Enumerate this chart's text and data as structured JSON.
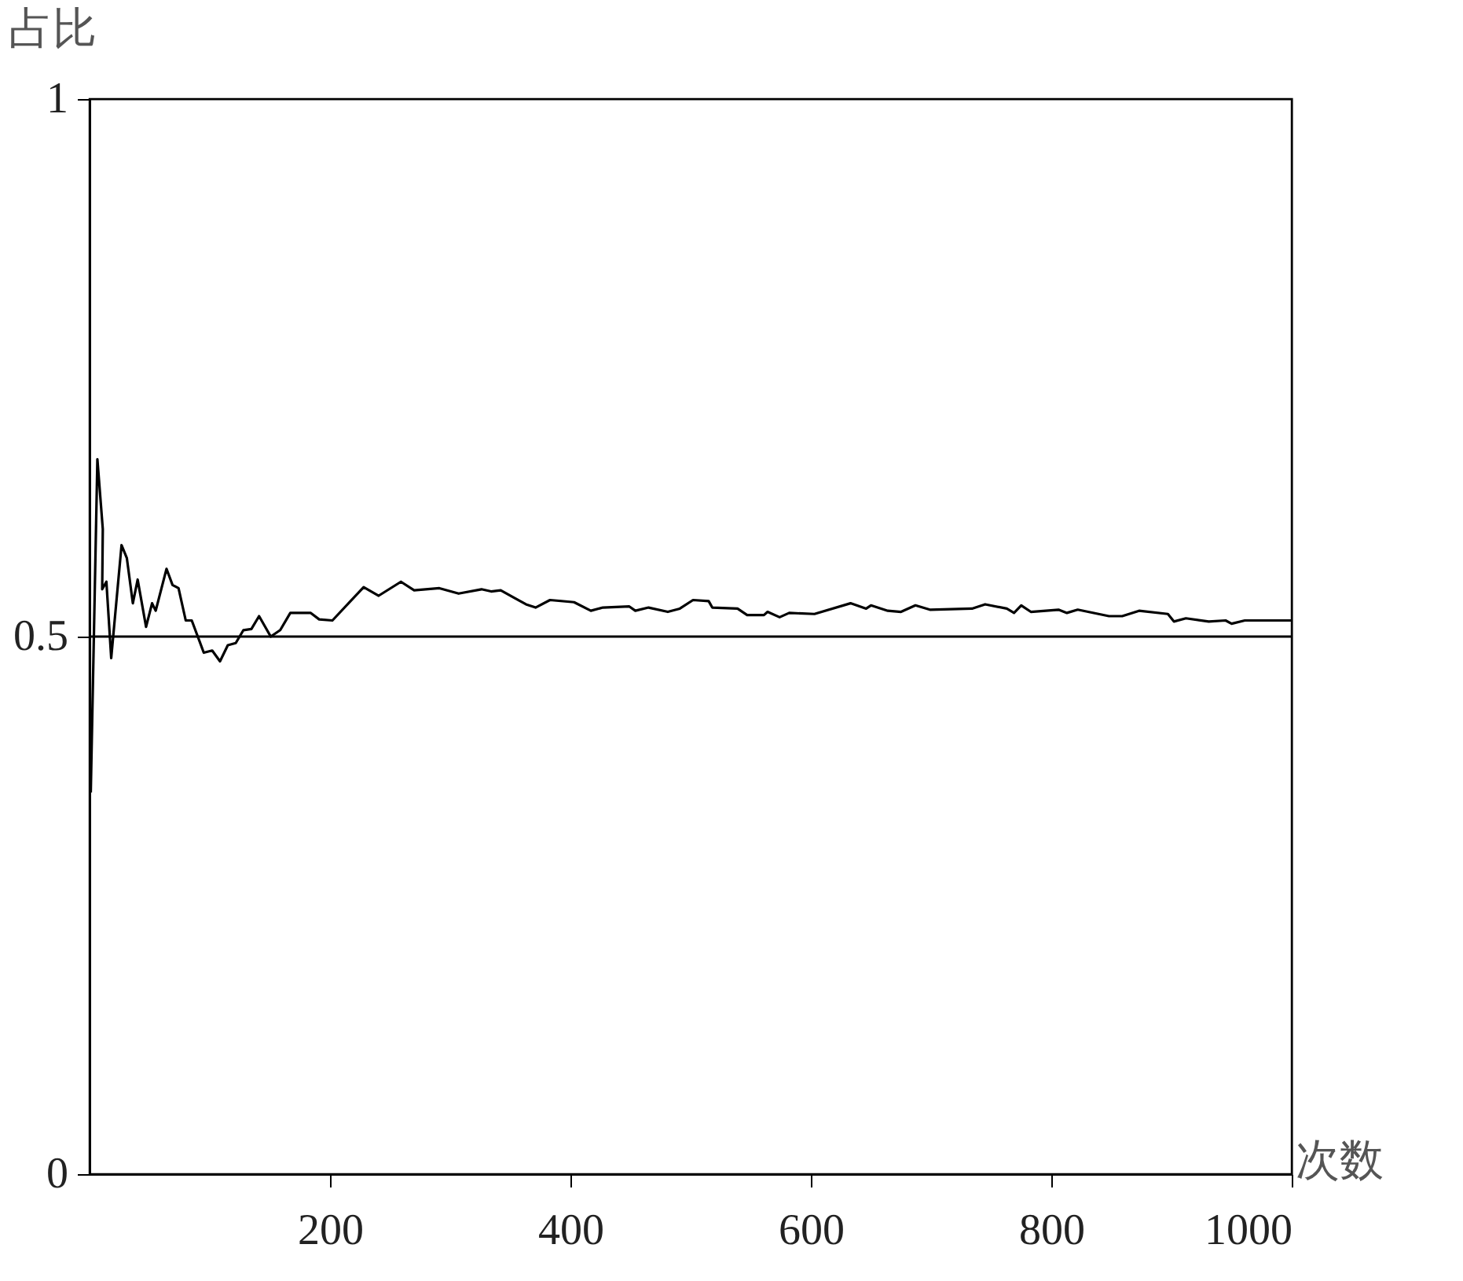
{
  "chart_data": {
    "type": "line",
    "xlabel": "次数",
    "ylabel": "占比",
    "x": [
      1,
      6.5,
      11,
      10.5,
      14,
      18,
      26.6,
      31,
      36,
      40,
      47,
      52,
      55,
      64,
      69,
      74,
      80,
      85,
      95,
      102,
      108.5,
      115,
      121.6,
      128,
      134.6,
      141,
      150.7,
      158.6,
      167,
      184,
      191,
      202,
      228,
      240.5,
      259,
      270,
      291,
      307,
      326,
      334,
      342,
      363,
      371,
      383,
      403,
      417,
      427,
      449,
      454,
      465,
      481,
      491,
      502,
      515,
      518,
      539,
      547,
      561,
      564,
      574,
      582,
      603,
      633,
      646,
      650,
      664,
      675,
      687,
      699,
      734,
      745,
      763,
      769,
      775,
      783,
      806,
      813,
      822,
      848,
      859,
      873,
      897,
      902,
      912,
      931,
      945,
      950,
      961,
      993,
      1000
    ],
    "series": [
      {
        "color": "#000000",
        "values": [
          0.355,
          0.665,
          0.6,
          0.544,
          0.551,
          0.48,
          0.585,
          0.573,
          0.531,
          0.553,
          0.509,
          0.531,
          0.524,
          0.563,
          0.548,
          0.545,
          0.515,
          0.515,
          0.485,
          0.487,
          0.477,
          0.492,
          0.494,
          0.506,
          0.507,
          0.519,
          0.5,
          0.506,
          0.522,
          0.522,
          0.516,
          0.515,
          0.546,
          0.538,
          0.551,
          0.543,
          0.545,
          0.54,
          0.544,
          0.542,
          0.543,
          0.53,
          0.527,
          0.534,
          0.532,
          0.524,
          0.527,
          0.528,
          0.524,
          0.527,
          0.523,
          0.526,
          0.534,
          0.533,
          0.527,
          0.526,
          0.52,
          0.52,
          0.523,
          0.518,
          0.522,
          0.521,
          0.531,
          0.526,
          0.529,
          0.524,
          0.523,
          0.529,
          0.525,
          0.526,
          0.53,
          0.526,
          0.522,
          0.529,
          0.523,
          0.525,
          0.522,
          0.525,
          0.519,
          0.519,
          0.524,
          0.521,
          0.514,
          0.517,
          0.514,
          0.515,
          0.512,
          0.515,
          0.515,
          0.515
        ]
      }
    ],
    "xlim": [
      0,
      1000
    ],
    "xticks": [
      200,
      400,
      600,
      800,
      1000
    ],
    "ylim": [
      0,
      1
    ],
    "yticks": [
      0,
      0.5,
      1
    ],
    "ref_lines": [
      {
        "axis": "y",
        "value": 0.5,
        "label": null,
        "color": "#000000"
      }
    ],
    "grid": false,
    "marker": "none",
    "line_style": "solid"
  }
}
